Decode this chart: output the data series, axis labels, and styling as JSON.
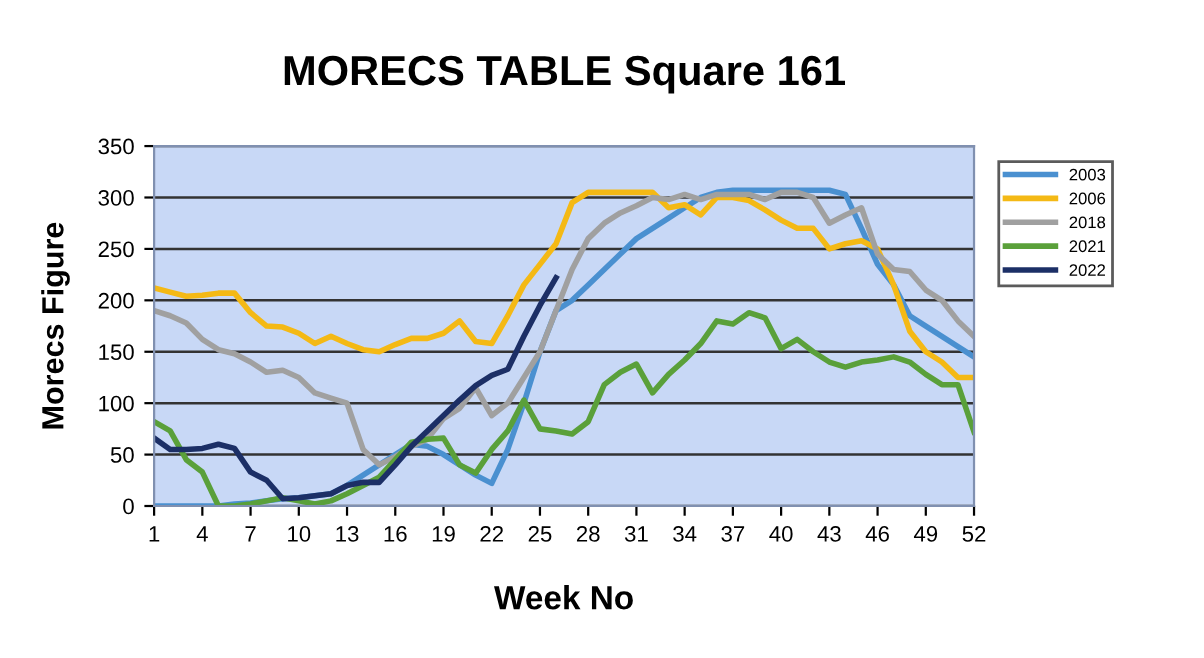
{
  "chart_data": {
    "type": "line",
    "title": "MORECS TABLE Square 161",
    "xlabel": "Week No",
    "ylabel": "Morecs Figure",
    "x": [
      1,
      2,
      3,
      4,
      5,
      6,
      7,
      8,
      9,
      10,
      11,
      12,
      13,
      14,
      15,
      16,
      17,
      18,
      19,
      20,
      21,
      22,
      23,
      24,
      25,
      26,
      27,
      28,
      29,
      30,
      31,
      32,
      33,
      34,
      35,
      36,
      37,
      38,
      39,
      40,
      41,
      42,
      43,
      44,
      45,
      46,
      47,
      48,
      49,
      50,
      51,
      52
    ],
    "xlim": [
      1,
      52
    ],
    "xticks": [
      1,
      4,
      7,
      10,
      13,
      16,
      19,
      22,
      25,
      28,
      31,
      34,
      37,
      40,
      43,
      46,
      49,
      52
    ],
    "ylim": [
      0,
      350
    ],
    "yticks": [
      0,
      50,
      100,
      150,
      200,
      250,
      300,
      350
    ],
    "grid": "y",
    "legend": "right",
    "marker": "none",
    "line_style": "solid",
    "series": [
      {
        "name": "2003",
        "color": "#4a90d0",
        "values": [
          0,
          0,
          0,
          0,
          0,
          2,
          3,
          5,
          7,
          8,
          10,
          12,
          20,
          30,
          40,
          50,
          60,
          58,
          50,
          40,
          30,
          22,
          55,
          100,
          150,
          190,
          200,
          215,
          230,
          245,
          260,
          270,
          280,
          290,
          300,
          305,
          307,
          307,
          307,
          307,
          307,
          307,
          307,
          303,
          270,
          235,
          215,
          185,
          175,
          165,
          155,
          145
        ]
      },
      {
        "name": "2006",
        "color": "#f4b915",
        "values": [
          212,
          208,
          204,
          205,
          207,
          207,
          188,
          175,
          174,
          168,
          158,
          165,
          158,
          152,
          150,
          157,
          163,
          163,
          168,
          180,
          160,
          158,
          185,
          215,
          235,
          255,
          295,
          305,
          305,
          305,
          305,
          305,
          290,
          293,
          283,
          300,
          300,
          297,
          288,
          278,
          270,
          270,
          250,
          255,
          258,
          250,
          215,
          170,
          150,
          140,
          125,
          125
        ]
      },
      {
        "name": "2018",
        "color": "#a0a0a0",
        "values": [
          190,
          185,
          178,
          162,
          152,
          148,
          140,
          130,
          132,
          125,
          110,
          105,
          100,
          55,
          40,
          48,
          58,
          65,
          85,
          95,
          115,
          88,
          100,
          125,
          150,
          190,
          230,
          260,
          275,
          285,
          292,
          300,
          298,
          303,
          298,
          303,
          303,
          303,
          298,
          305,
          305,
          300,
          275,
          283,
          290,
          245,
          230,
          228,
          210,
          200,
          180,
          165
        ]
      },
      {
        "name": "2021",
        "color": "#5aa03a",
        "values": [
          82,
          73,
          45,
          33,
          0,
          0,
          2,
          5,
          8,
          5,
          2,
          5,
          12,
          20,
          28,
          45,
          62,
          65,
          66,
          40,
          32,
          55,
          73,
          103,
          75,
          73,
          70,
          82,
          118,
          130,
          138,
          110,
          128,
          142,
          158,
          180,
          177,
          188,
          183,
          153,
          162,
          150,
          140,
          135,
          140,
          142,
          145,
          140,
          128,
          118,
          118,
          72
        ]
      },
      {
        "name": "2022",
        "color": "#1c2f66",
        "values": [
          66,
          55,
          55,
          56,
          60,
          56,
          33,
          25,
          7,
          8,
          10,
          12,
          20,
          23,
          23,
          40,
          58,
          73,
          88,
          103,
          117,
          127,
          133,
          165,
          195,
          222,
          null,
          null,
          null,
          null,
          null,
          null,
          null,
          null,
          null,
          null,
          null,
          null,
          null,
          null,
          null,
          null,
          null,
          null,
          null,
          null,
          null,
          null,
          null,
          null,
          null,
          null
        ]
      }
    ]
  }
}
